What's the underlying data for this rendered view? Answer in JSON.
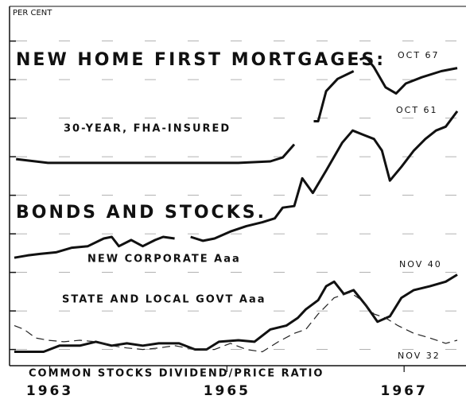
{
  "chart_data": {
    "type": "line",
    "ylabel": "PER CENT",
    "xlim": [
      1962.6,
      1967.6
    ],
    "xticks": [
      1963,
      1965,
      1967
    ],
    "ylim": [
      2.79,
      7.45
    ],
    "yticks": [
      3.0,
      3.5,
      4.0,
      4.5,
      5.0,
      5.5,
      6.0,
      6.5,
      7.0
    ],
    "grid": true,
    "annotations": [
      "NEW HOME FIRST MORTGAGES:",
      "BONDS AND STOCKS.",
      "OCT 67",
      "OCT 61",
      "NOV 40",
      "NOV 32"
    ],
    "series": [
      {
        "name": "30-YEAR, FHA-INSURED",
        "color": "#111111",
        "dashed": false,
        "x": [
          1962.62,
          1962.98,
          1963.52,
          1964.05,
          1964.59,
          1965.13,
          1965.49,
          1965.63,
          1965.76,
          1965.87,
          1965.98,
          1966.03,
          1966.12,
          1966.25,
          1966.43,
          1966.47,
          1966.5,
          1966.57,
          1966.66,
          1966.79,
          1966.91,
          1967.02,
          1967.2,
          1967.42,
          1967.6
        ],
        "values": [
          5.47,
          5.42,
          5.42,
          5.42,
          5.42,
          5.42,
          5.44,
          5.49,
          5.66,
          null,
          5.96,
          5.96,
          6.35,
          6.51,
          6.61,
          null,
          6.76,
          6.79,
          6.66,
          6.4,
          6.32,
          6.45,
          6.53,
          6.61,
          6.65
        ]
      },
      {
        "name": "NEW CORPORATE Aaa",
        "color": "#111111",
        "dashed": false,
        "x": [
          1962.6,
          1962.75,
          1962.89,
          1963.07,
          1963.25,
          1963.43,
          1963.61,
          1963.7,
          1963.78,
          1963.92,
          1964.05,
          1964.19,
          1964.28,
          1964.41,
          1964.5,
          1964.59,
          1964.73,
          1964.86,
          1965.04,
          1965.22,
          1965.4,
          1965.54,
          1965.63,
          1965.76,
          1965.85,
          1965.97,
          1966.12,
          1966.3,
          1966.42,
          1966.55,
          1966.66,
          1966.75,
          1966.84,
          1966.97,
          1967.11,
          1967.24,
          1967.36,
          1967.47,
          1967.6
        ],
        "values": [
          4.19,
          4.22,
          4.24,
          4.26,
          4.32,
          4.34,
          4.44,
          4.46,
          4.34,
          4.42,
          4.34,
          4.42,
          4.46,
          4.44,
          null,
          4.46,
          4.41,
          4.44,
          4.53,
          4.6,
          4.65,
          4.7,
          4.84,
          4.86,
          5.22,
          5.03,
          5.32,
          5.68,
          5.84,
          5.78,
          5.73,
          5.58,
          5.19,
          5.37,
          5.58,
          5.73,
          5.84,
          5.89,
          6.09
        ]
      },
      {
        "name": "STATE AND LOCAL GOVT Aaa",
        "color": "#111111",
        "dashed": false,
        "x": [
          1962.6,
          1962.8,
          1962.93,
          1963.11,
          1963.34,
          1963.52,
          1963.7,
          1963.87,
          1964.05,
          1964.23,
          1964.46,
          1964.64,
          1964.77,
          1964.91,
          1965.13,
          1965.31,
          1965.49,
          1965.67,
          1965.8,
          1965.89,
          1966.03,
          1966.12,
          1966.21,
          1966.32,
          1966.43,
          1966.57,
          1966.7,
          1966.84,
          1966.97,
          1967.11,
          1967.29,
          1967.47,
          1967.6
        ],
        "values": [
          2.97,
          2.97,
          2.97,
          3.05,
          3.05,
          3.1,
          3.05,
          3.08,
          3.05,
          3.08,
          3.08,
          3.0,
          3.0,
          3.1,
          3.12,
          3.1,
          3.26,
          3.31,
          3.41,
          3.52,
          3.64,
          3.82,
          3.88,
          3.72,
          3.77,
          3.57,
          3.36,
          3.43,
          3.67,
          3.77,
          3.82,
          3.88,
          3.97
        ]
      },
      {
        "name": "COMMON STOCKS DIVIDEND/PRICE RATIO",
        "color": "#222222",
        "dashed": true,
        "x": [
          1962.6,
          1962.71,
          1962.84,
          1962.98,
          1963.16,
          1963.34,
          1963.52,
          1963.7,
          1963.87,
          1964.05,
          1964.23,
          1964.41,
          1964.64,
          1964.86,
          1965.04,
          1965.22,
          1965.4,
          1965.58,
          1965.76,
          1965.89,
          1966.03,
          1966.21,
          1966.39,
          1966.52,
          1966.66,
          1966.79,
          1966.93,
          1967.11,
          1967.29,
          1967.47,
          1967.6
        ],
        "values": [
          3.31,
          3.26,
          3.15,
          3.12,
          3.1,
          3.12,
          3.1,
          3.05,
          3.02,
          3.0,
          3.02,
          3.05,
          3.0,
          3.0,
          3.08,
          3.0,
          2.97,
          3.1,
          3.21,
          3.26,
          3.46,
          3.67,
          3.74,
          3.64,
          3.46,
          3.41,
          3.31,
          3.21,
          3.15,
          3.08,
          3.12
        ]
      }
    ]
  }
}
